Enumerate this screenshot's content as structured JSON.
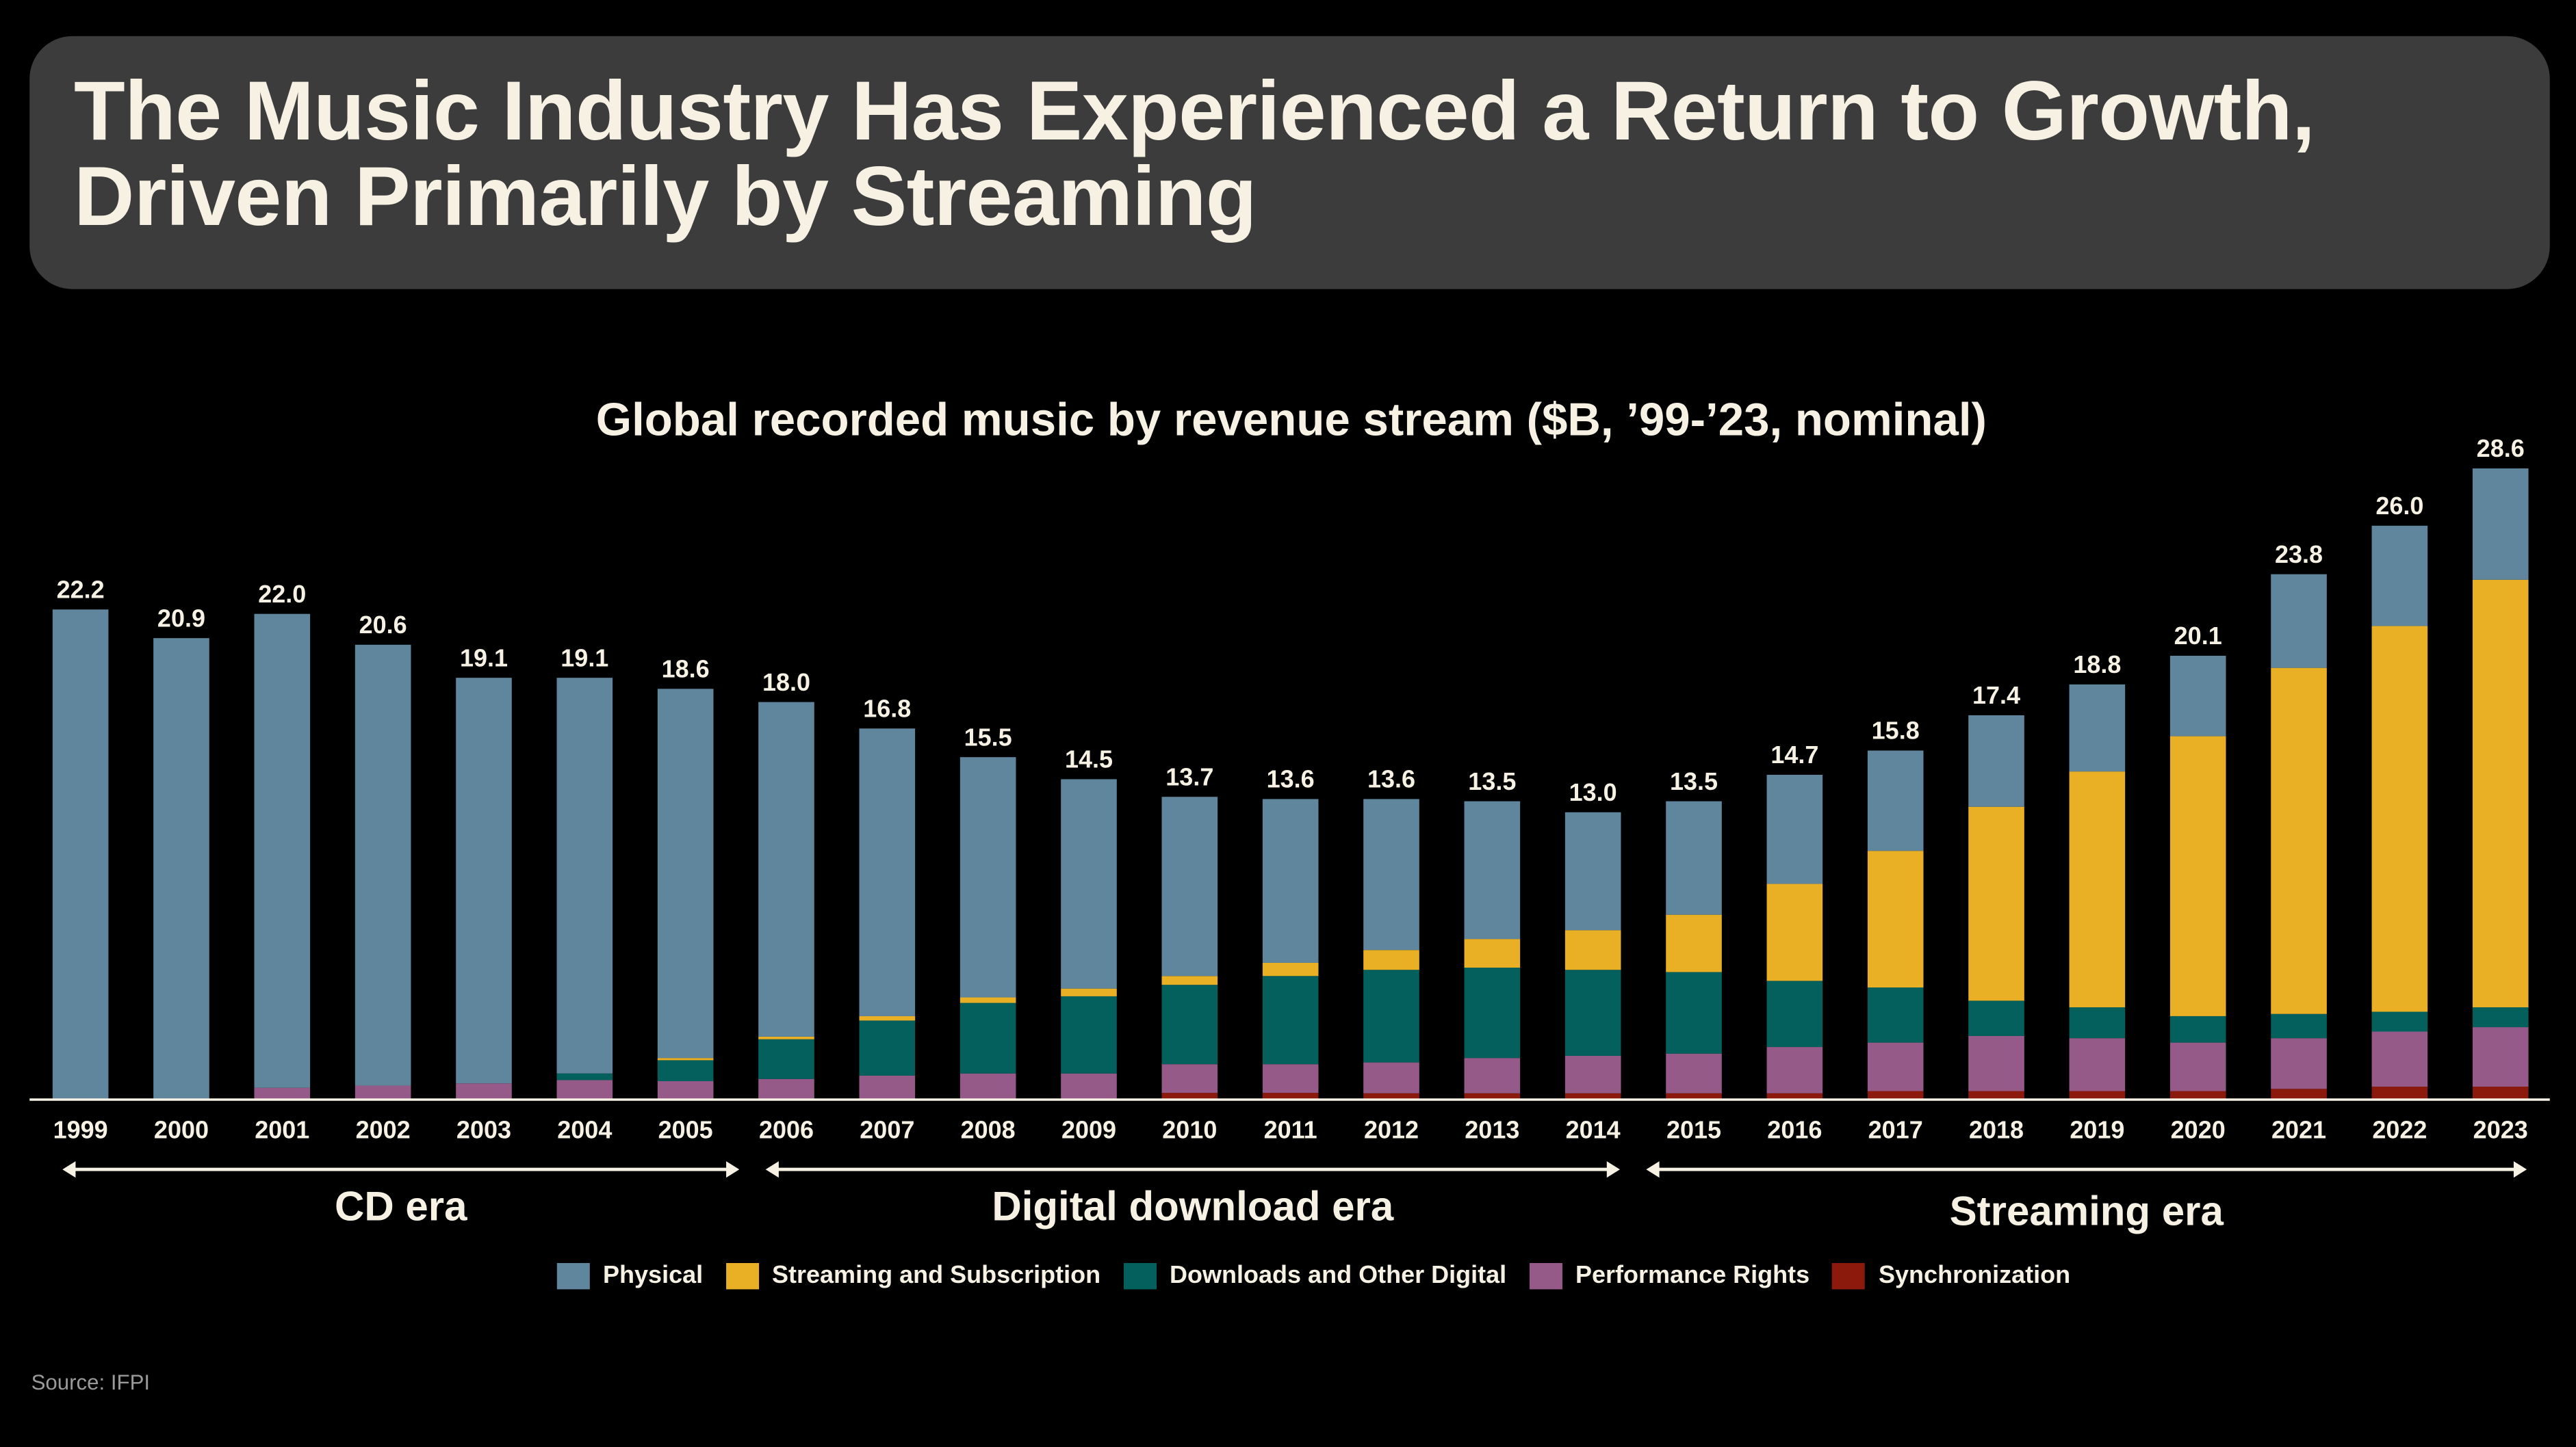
{
  "header": {
    "title_line1": "The Music Industry Has Experienced a Return to Growth,",
    "title_line2": "Driven Primarily by Streaming"
  },
  "chart_data": {
    "type": "bar",
    "stacked": true,
    "title": "Global recorded music by revenue stream ($B, ’99-’23, nominal)",
    "xlabel": "",
    "ylabel": "",
    "ylim": [
      0,
      30
    ],
    "grid": false,
    "legend_position": "bottom",
    "categories": [
      "1999",
      "2000",
      "2001",
      "2002",
      "2003",
      "2004",
      "2005",
      "2006",
      "2007",
      "2008",
      "2009",
      "2010",
      "2011",
      "2012",
      "2013",
      "2014",
      "2015",
      "2016",
      "2017",
      "2018",
      "2019",
      "2020",
      "2021",
      "2022",
      "2023"
    ],
    "totals": [
      "22.2",
      "20.9",
      "22.0",
      "20.6",
      "19.1",
      "19.1",
      "18.6",
      "18.0",
      "16.8",
      "15.5",
      "14.5",
      "13.7",
      "13.6",
      "13.6",
      "13.5",
      "13.0",
      "13.5",
      "14.7",
      "15.8",
      "17.4",
      "18.8",
      "20.1",
      "23.8",
      "26.0",
      "28.6"
    ],
    "series": [
      {
        "name": "Synchronization",
        "color": "#8b1a0c",
        "values": [
          0,
          0,
          0,
          0,
          0,
          0,
          0,
          0,
          0,
          0,
          0,
          0.27,
          0.27,
          0.25,
          0.25,
          0.25,
          0.25,
          0.25,
          0.35,
          0.35,
          0.35,
          0.35,
          0.45,
          0.55,
          0.55
        ]
      },
      {
        "name": "Performance Rights",
        "color": "#955a88",
        "values": [
          0,
          0,
          0.5,
          0.6,
          0.7,
          0.85,
          0.8,
          0.9,
          1.05,
          1.15,
          1.15,
          1.3,
          1.3,
          1.4,
          1.6,
          1.7,
          1.8,
          2.1,
          2.2,
          2.5,
          2.4,
          2.2,
          2.3,
          2.5,
          2.7
        ]
      },
      {
        "name": "Downloads and Other Digital",
        "color": "#04605c",
        "values": [
          0,
          0,
          0,
          0,
          0,
          0.3,
          0.95,
          1.8,
          2.5,
          3.2,
          3.5,
          3.6,
          4.0,
          4.2,
          4.1,
          3.9,
          3.7,
          3.0,
          2.5,
          1.6,
          1.4,
          1.2,
          1.1,
          0.9,
          0.9
        ]
      },
      {
        "name": "Streaming and Subscription",
        "color": "#e9b026",
        "values": [
          0,
          0,
          0,
          0,
          0,
          0,
          0.1,
          0.12,
          0.2,
          0.25,
          0.35,
          0.4,
          0.6,
          0.9,
          1.3,
          1.8,
          2.6,
          4.4,
          6.2,
          8.8,
          10.7,
          12.7,
          15.7,
          17.5,
          19.4
        ]
      },
      {
        "name": "Physical",
        "color": "#5f869d",
        "values": [
          22.2,
          20.9,
          21.5,
          20.0,
          18.4,
          17.95,
          16.75,
          15.18,
          13.05,
          10.9,
          9.5,
          8.13,
          7.43,
          6.85,
          6.25,
          5.35,
          5.15,
          4.95,
          4.55,
          4.15,
          3.95,
          3.65,
          4.25,
          4.55,
          5.05
        ]
      }
    ],
    "legend": [
      "Physical",
      "Streaming and Subscription",
      "Downloads and Other Digital",
      "Performance Rights",
      "Synchronization"
    ],
    "annotations": [
      {
        "label": "CD era",
        "from": "1999",
        "to": "2005"
      },
      {
        "label": "Digital download era",
        "from": "2006",
        "to": "2014"
      },
      {
        "label": "Streaming era",
        "from": "2015",
        "to": "2023"
      }
    ]
  },
  "colors": {
    "Physical": "#5f869d",
    "Streaming and Subscription": "#e9b026",
    "Downloads and Other Digital": "#04605c",
    "Performance Rights": "#955a88",
    "Synchronization": "#8b1a0c",
    "title_bg": "#3c3c3c",
    "text": "#f6f1e3"
  },
  "source": "Source: IFPI"
}
